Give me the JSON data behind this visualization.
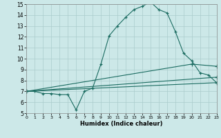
{
  "xlabel": "Humidex (Indice chaleur)",
  "bg_color": "#cce8e8",
  "grid_color": "#aacccc",
  "line_color": "#1a6b60",
  "xlim": [
    0,
    23
  ],
  "ylim": [
    5,
    15
  ],
  "xticks": [
    0,
    1,
    2,
    3,
    4,
    5,
    6,
    7,
    8,
    9,
    10,
    11,
    12,
    13,
    14,
    15,
    16,
    17,
    18,
    19,
    20,
    21,
    22,
    23
  ],
  "yticks": [
    5,
    6,
    7,
    8,
    9,
    10,
    11,
    12,
    13,
    14,
    15
  ],
  "series": [
    {
      "x": [
        0,
        1,
        2,
        3,
        4,
        5,
        6,
        7,
        8,
        9,
        10,
        11,
        12,
        13,
        14,
        15,
        16,
        17,
        18,
        19,
        20,
        21,
        22,
        23
      ],
      "y": [
        7.0,
        7.0,
        6.8,
        6.8,
        6.7,
        6.7,
        5.3,
        7.0,
        7.3,
        9.5,
        12.1,
        13.0,
        13.8,
        14.5,
        14.8,
        15.2,
        14.5,
        14.2,
        12.5,
        10.5,
        9.8,
        8.7,
        8.5,
        7.8
      ],
      "has_marker": true
    },
    {
      "x": [
        0,
        23
      ],
      "y": [
        7.0,
        7.8
      ],
      "has_marker": true
    },
    {
      "x": [
        0,
        23
      ],
      "y": [
        7.0,
        8.3
      ],
      "has_marker": true
    },
    {
      "x": [
        0,
        20,
        23
      ],
      "y": [
        7.0,
        9.5,
        9.3
      ],
      "has_marker": true
    }
  ]
}
